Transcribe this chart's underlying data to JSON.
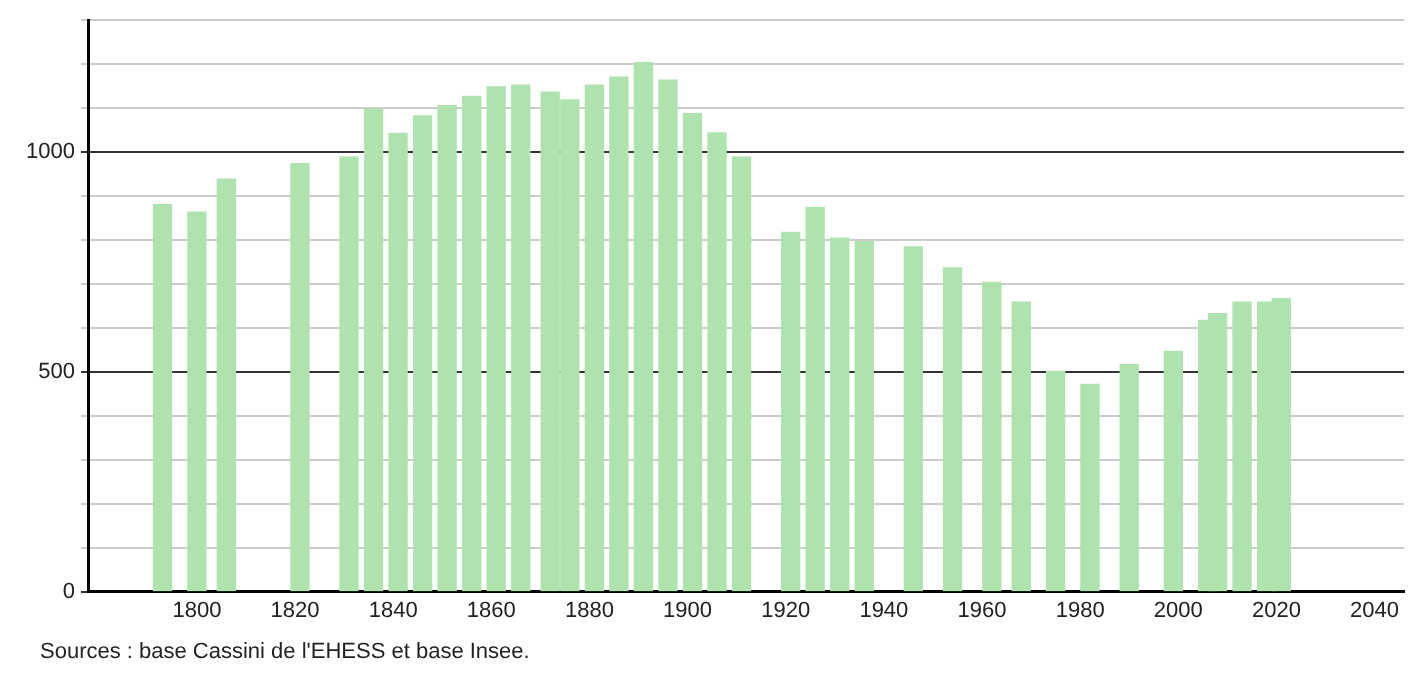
{
  "chart_data": {
    "type": "bar",
    "x": [
      1793,
      1800,
      1806,
      1821,
      1831,
      1836,
      1841,
      1846,
      1851,
      1856,
      1861,
      1866,
      1872,
      1876,
      1881,
      1886,
      1891,
      1896,
      1901,
      1906,
      1911,
      1921,
      1926,
      1931,
      1936,
      1946,
      1954,
      1962,
      1968,
      1975,
      1982,
      1990,
      1999,
      2006,
      2008,
      2013,
      2018,
      2021
    ],
    "values": [
      880,
      863,
      938,
      973,
      988,
      1097,
      1042,
      1082,
      1105,
      1126,
      1148,
      1152,
      1136,
      1118,
      1152,
      1170,
      1203,
      1163,
      1087,
      1043,
      988,
      817,
      874,
      804,
      796,
      784,
      736,
      703,
      658,
      501,
      471,
      516,
      546,
      617,
      632,
      658,
      658,
      666
    ],
    "color": "#aee3ae",
    "xlim": [
      1778,
      2046
    ],
    "xticks": [
      1800,
      1820,
      1840,
      1860,
      1880,
      1900,
      1920,
      1940,
      1960,
      1980,
      2000,
      2020,
      2040
    ],
    "ylim": [
      0,
      1300
    ],
    "yticks": [
      0,
      {
        "value": 100,
        "label": null
      },
      {
        "value": 200,
        "label": null
      },
      {
        "value": 300,
        "label": null
      },
      {
        "value": 400,
        "label": null
      },
      500,
      {
        "value": 600,
        "label": null
      },
      {
        "value": 700,
        "label": null
      },
      {
        "value": 800,
        "label": null
      },
      {
        "value": 900,
        "label": null
      },
      1000,
      {
        "value": 1100,
        "label": null
      },
      {
        "value": 1200,
        "label": null
      },
      {
        "value": 1300,
        "label": null
      }
    ],
    "grid": "y",
    "legend": false,
    "annotations": [
      "Sources : base Cassini de l'EHESS et base Insee."
    ]
  }
}
